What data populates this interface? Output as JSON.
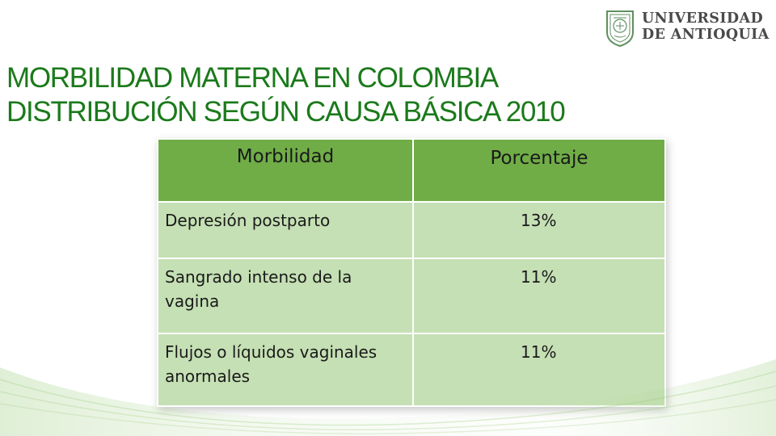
{
  "logo": {
    "line1": "UNIVERSIDAD",
    "line2": "DE ANTIOQUIA",
    "colors": {
      "text": "#4a4a4a",
      "seal": "#5f8f5f"
    }
  },
  "title": {
    "line1": "MORBILIDAD MATERNA EN COLOMBIA",
    "line2": "DISTRIBUCIÓN SEGÚN CAUSA BÁSICA 2010",
    "color": "#1b7a1b"
  },
  "table": {
    "headers": [
      "Morbilidad",
      "Porcentaje"
    ],
    "rows": [
      {
        "cause": "Depresión postparto",
        "percent": "13%"
      },
      {
        "cause": "Sangrado intenso de la vagina",
        "percent": "11%"
      },
      {
        "cause": "Flujos o líquidos vaginales anormales",
        "percent": "11%"
      }
    ],
    "colors": {
      "header": "#70ad47",
      "cell": "#c5e0b4"
    }
  }
}
